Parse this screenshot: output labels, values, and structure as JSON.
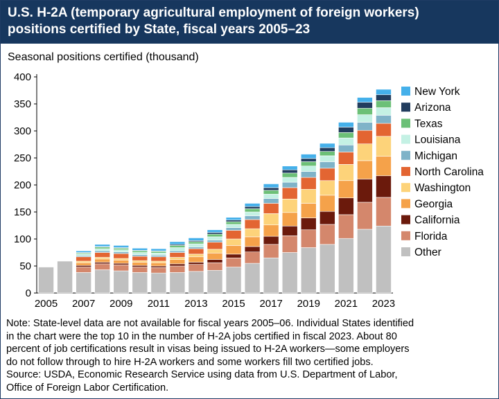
{
  "header": {
    "title_line1": "U.S. H-2A (temporary agricultural employment of foreign workers)",
    "title_line2": "positions certified by State, fiscal years 2005–23"
  },
  "note": {
    "lines": [
      "Note: State-level data are not available for fiscal years 2005–06. Individual States identified",
      "in the chart were the top 10 in the number of H-2A jobs certified in fiscal 2023. About 80",
      "percent of job certifications result in visas being issued to H-2A workers—some employers",
      "do not follow through to hire H-2A workers and some workers fill two certified jobs.",
      "Source: USDA, Economic Research Service using data from U.S. Department of Labor,",
      "Office of Foreign Labor Certification."
    ]
  },
  "chart_data": {
    "type": "bar",
    "stacked": true,
    "ylabel": "Seasonal positions certified (thousand)",
    "xlabel": "",
    "ylim": [
      0,
      400
    ],
    "yticks": [
      0,
      50,
      100,
      150,
      200,
      250,
      300,
      350,
      400
    ],
    "xtick_labels": [
      "2005",
      "2007",
      "2009",
      "2011",
      "2013",
      "2015",
      "2017",
      "2019",
      "2021",
      "2023"
    ],
    "grid": false,
    "legend_position": "right",
    "categories": [
      "2005",
      "2006",
      "2007",
      "2008",
      "2009",
      "2010",
      "2011",
      "2012",
      "2013",
      "2014",
      "2015",
      "2016",
      "2017",
      "2018",
      "2019",
      "2020",
      "2021",
      "2022",
      "2023"
    ],
    "series": [
      {
        "name": "Other",
        "color": "#c0c0c0",
        "values": [
          48,
          59,
          38,
          43,
          41,
          38,
          37,
          38,
          40,
          42,
          48,
          55,
          65,
          75,
          84,
          90,
          101,
          118,
          124
        ]
      },
      {
        "name": "Florida",
        "color": "#d4876c",
        "values": [
          0,
          0,
          10,
          11,
          11,
          10,
          10,
          12,
          13,
          14,
          17,
          21,
          25,
          31,
          33,
          37,
          44,
          50,
          53
        ]
      },
      {
        "name": "California",
        "color": "#6b1a0c",
        "values": [
          0,
          0,
          3,
          3,
          3,
          3,
          3,
          4,
          4,
          6,
          7,
          10,
          15,
          18,
          22,
          24,
          31,
          43,
          40
        ]
      },
      {
        "name": "Georgia",
        "color": "#f5a24a",
        "values": [
          0,
          0,
          5,
          6,
          6,
          6,
          6,
          8,
          10,
          12,
          16,
          18,
          21,
          25,
          27,
          30,
          32,
          34,
          36
        ]
      },
      {
        "name": "Washington",
        "color": "#fdd37a",
        "values": [
          0,
          0,
          3,
          3,
          3,
          3,
          3,
          4,
          5,
          7,
          12,
          15,
          21,
          25,
          26,
          27,
          30,
          31,
          37
        ]
      },
      {
        "name": "North Carolina",
        "color": "#e36532",
        "values": [
          0,
          0,
          8,
          9,
          9,
          8,
          8,
          9,
          10,
          13,
          16,
          17,
          19,
          21,
          22,
          23,
          23,
          25,
          24
        ]
      },
      {
        "name": "Michigan",
        "color": "#7fb3c8",
        "values": [
          0,
          0,
          2,
          3,
          3,
          3,
          3,
          3,
          3,
          4,
          5,
          7,
          9,
          10,
          11,
          12,
          13,
          15,
          15
        ]
      },
      {
        "name": "Louisiana",
        "color": "#c4f1e4",
        "values": [
          0,
          0,
          3,
          4,
          4,
          4,
          4,
          6,
          6,
          6,
          6,
          7,
          8,
          9,
          10,
          11,
          13,
          14,
          14
        ]
      },
      {
        "name": "Texas",
        "color": "#6cc077",
        "values": [
          0,
          0,
          2,
          3,
          3,
          3,
          3,
          4,
          4,
          5,
          5,
          6,
          7,
          8,
          8,
          8,
          10,
          12,
          13
        ]
      },
      {
        "name": "Arizona",
        "color": "#223d5e",
        "values": [
          0,
          0,
          1,
          1,
          1,
          1,
          1,
          2,
          2,
          3,
          3,
          4,
          5,
          6,
          6,
          7,
          10,
          11,
          11
        ]
      },
      {
        "name": "New York",
        "color": "#45b0ea",
        "values": [
          0,
          0,
          3,
          4,
          4,
          4,
          4,
          5,
          5,
          5,
          5,
          6,
          7,
          7,
          8,
          8,
          9,
          9,
          10
        ]
      }
    ]
  }
}
